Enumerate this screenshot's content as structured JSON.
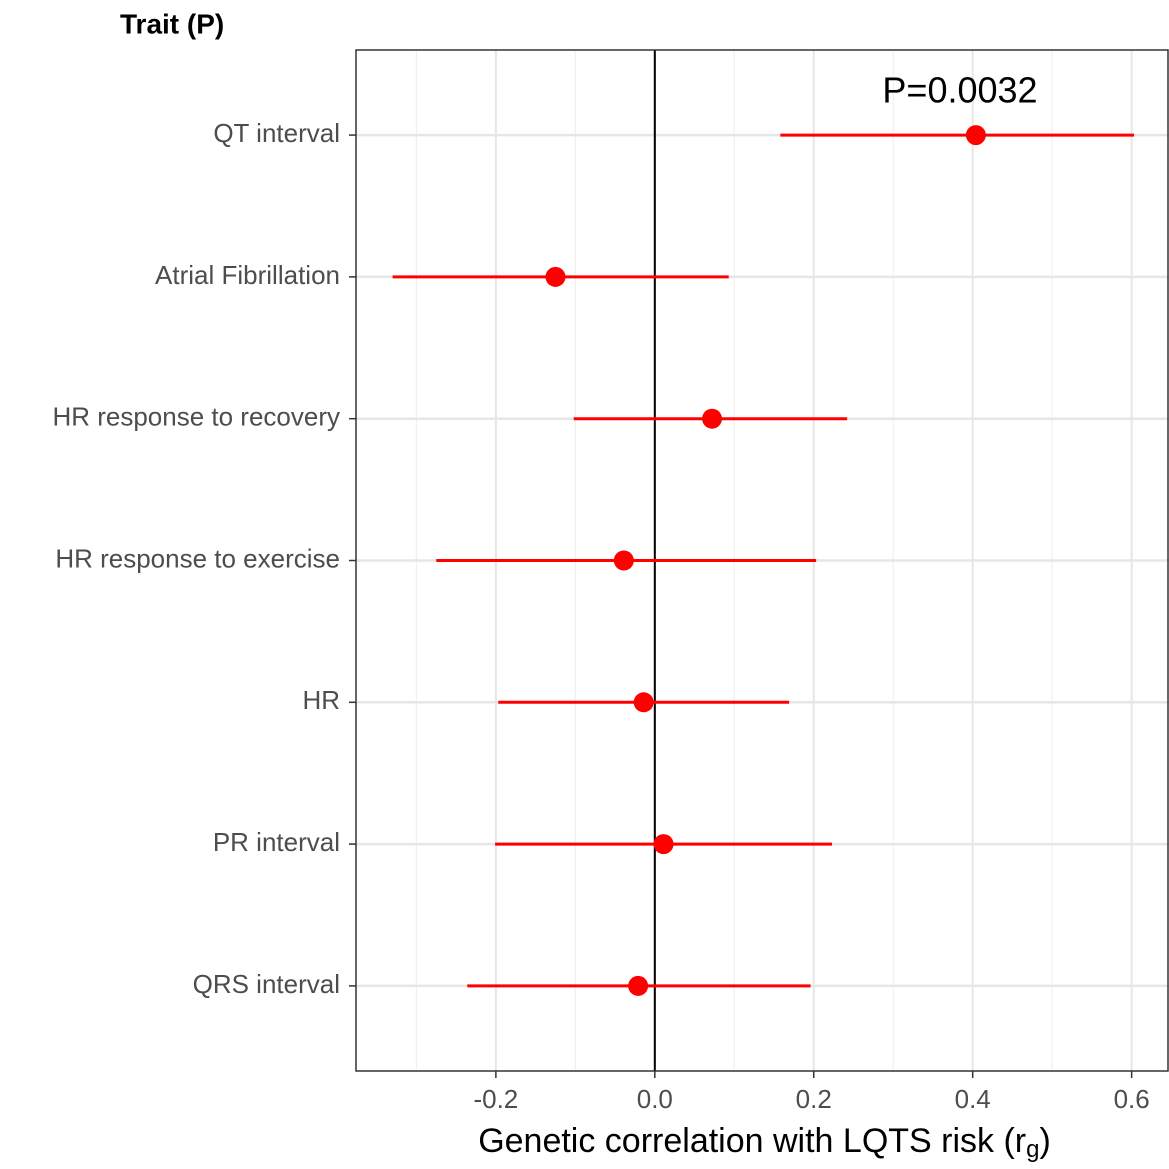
{
  "chart_data": {
    "type": "forest",
    "y_title": "Trait (P)",
    "x_label": {
      "text": "Genetic correlation with LQTS risk (r",
      "subscript": "g",
      "suffix": ")"
    },
    "annotation": {
      "text": "P=0.0032",
      "category": 0
    },
    "categories": [
      "QT interval",
      "Atrial Fibrillation",
      "HR response to recovery",
      "HR response to exercise",
      "HR",
      "PR interval",
      "QRS interval"
    ],
    "values": [
      0.404,
      -0.125,
      0.072,
      -0.039,
      -0.014,
      0.011,
      -0.021
    ],
    "lower": [
      0.158,
      -0.33,
      -0.102,
      -0.275,
      -0.197,
      -0.201,
      -0.236
    ],
    "upper": [
      0.603,
      0.093,
      0.242,
      0.203,
      0.169,
      0.223,
      0.196
    ],
    "color": "#ff0000",
    "xlim": [
      -0.376,
      0.647
    ],
    "xticks": [
      -0.2,
      {
        "value": 0,
        "label": "0.0"
      },
      0.2,
      0.4,
      0.6
    ],
    "x_minor_ticks": [
      -0.3,
      -0.1,
      0.1,
      0.3,
      0.5
    ],
    "ref_line_x": 0,
    "grid": true
  }
}
